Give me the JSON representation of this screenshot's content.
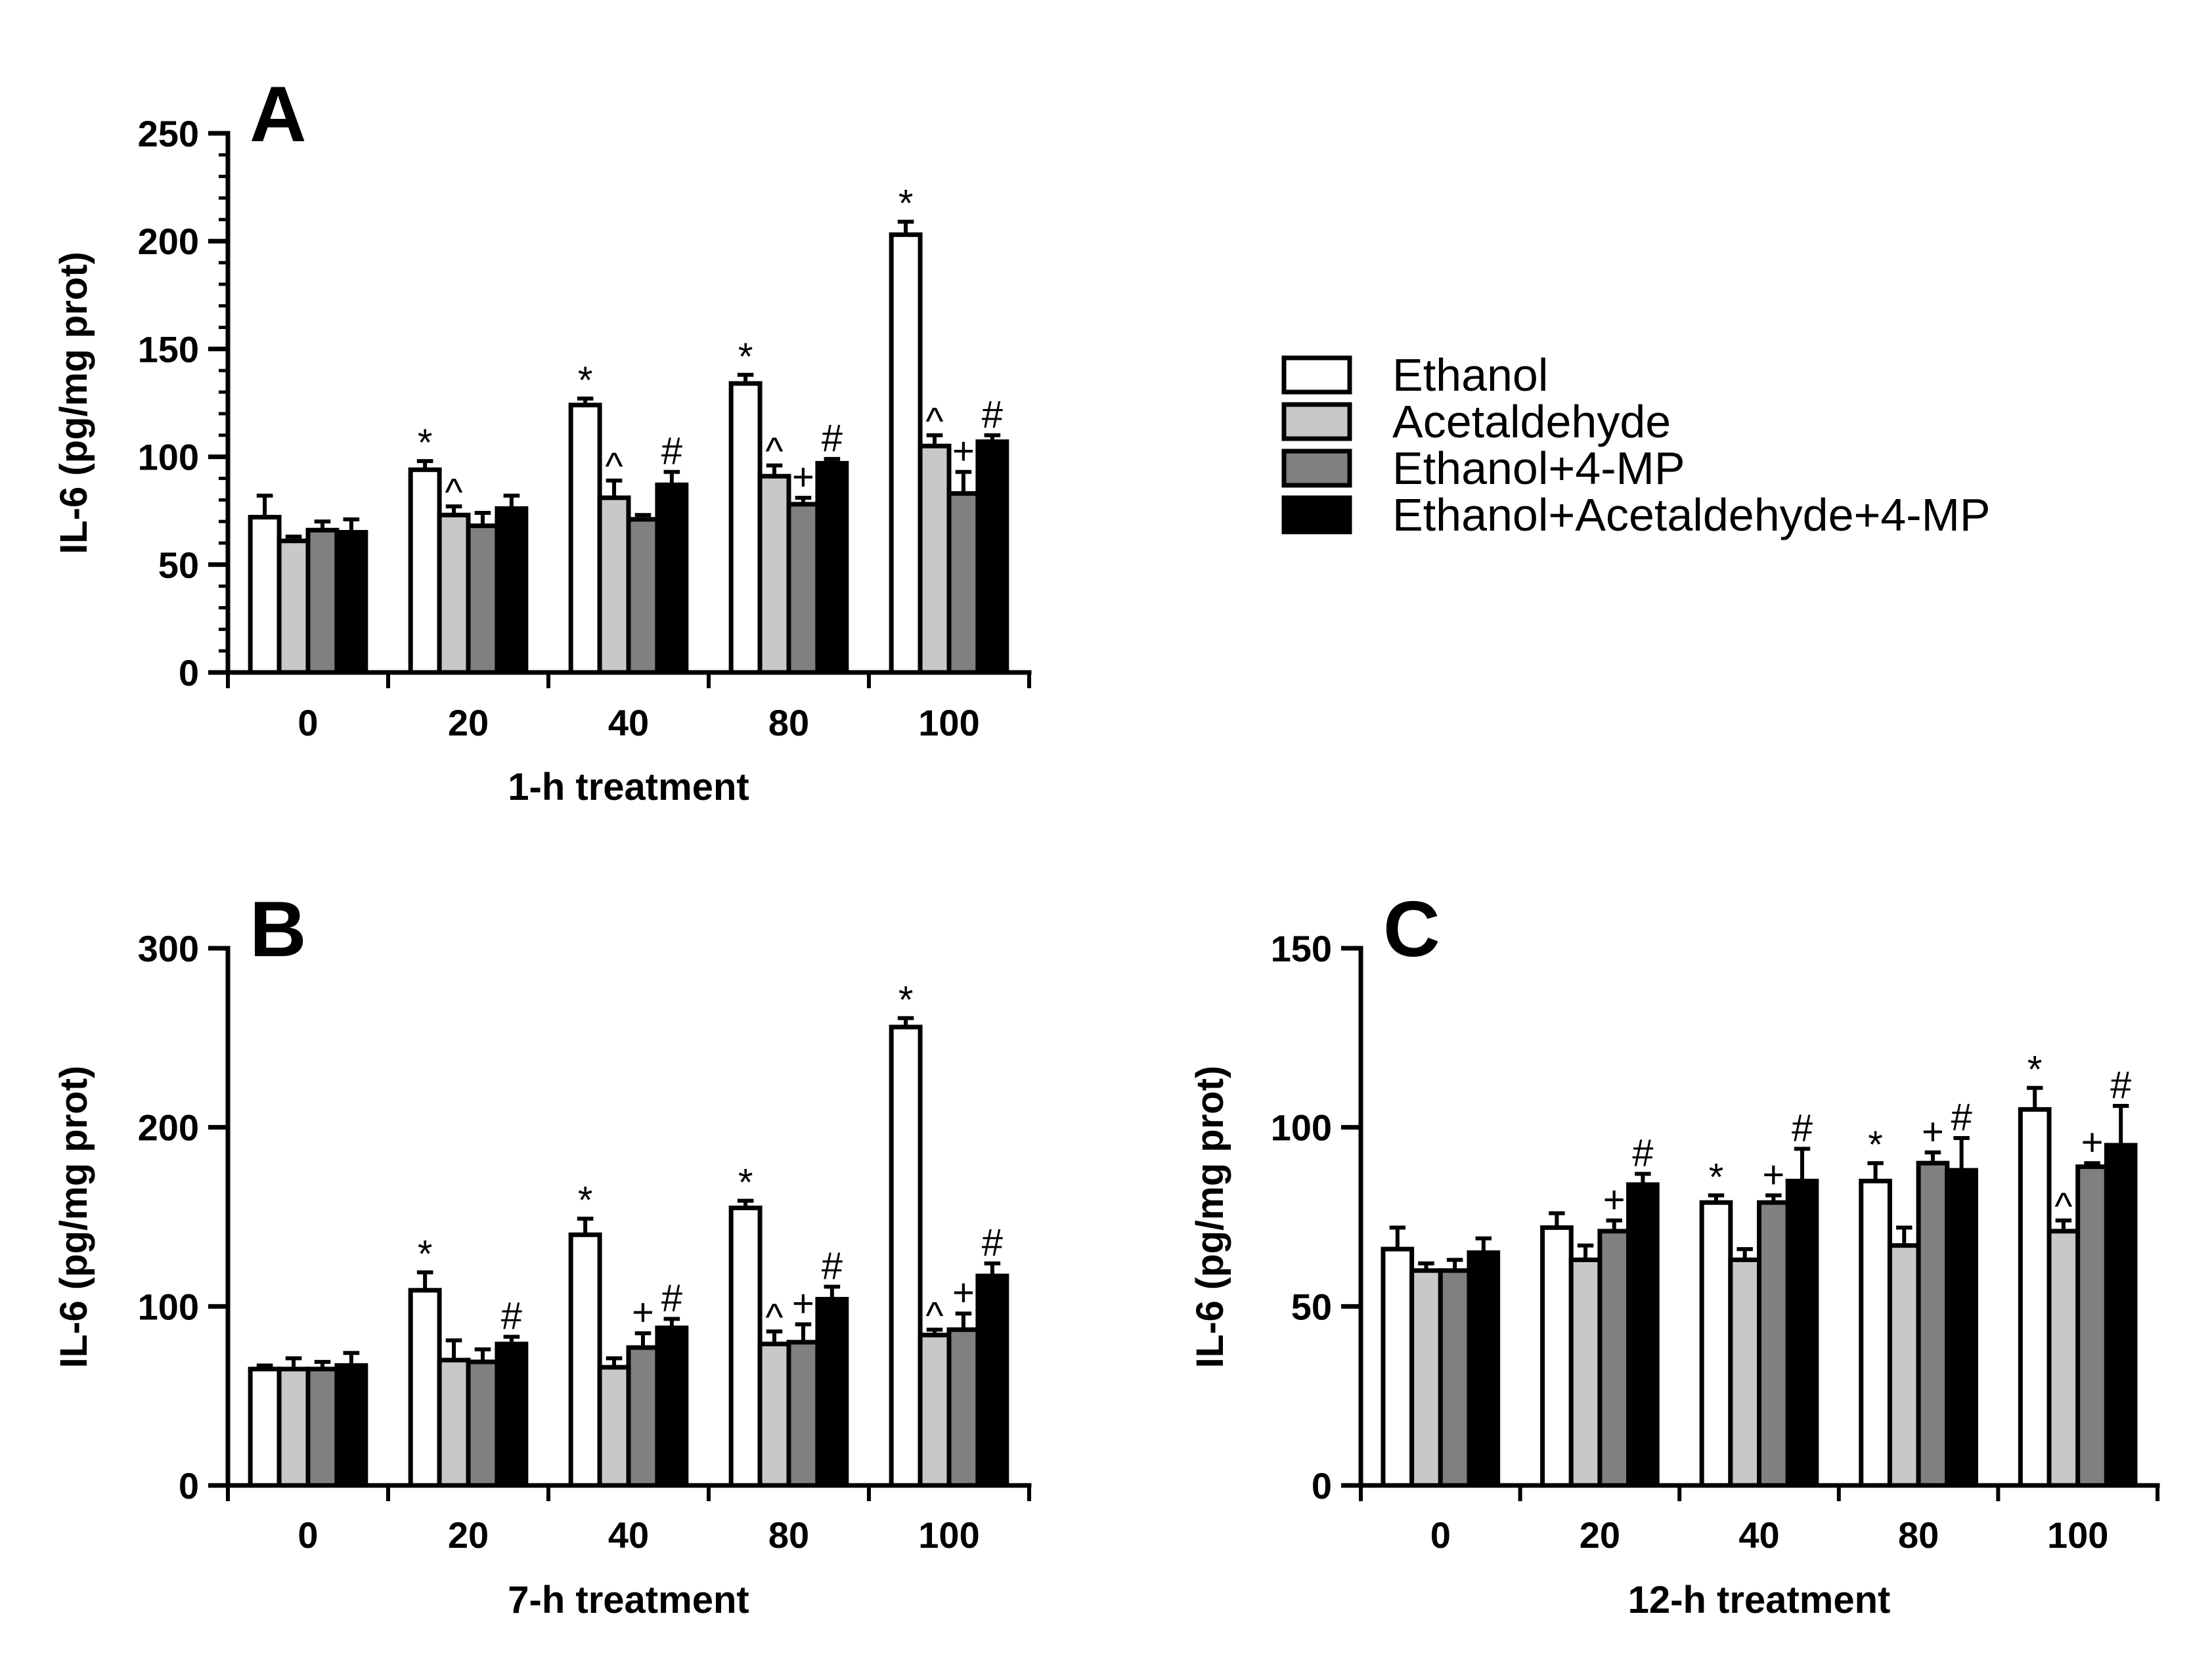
{
  "chart_data": [
    {
      "type": "bar",
      "panel_label": "A",
      "title": "",
      "xlabel": "1-h treatment",
      "ylabel": "IL-6 (pg/mg prot)",
      "ylim": [
        0,
        250
      ],
      "yticks": [
        0,
        50,
        100,
        150,
        200,
        250
      ],
      "y_minor_step": 10,
      "categories": [
        "0",
        "20",
        "40",
        "80",
        "100"
      ],
      "series": [
        {
          "name": "Ethanol",
          "values": [
            72,
            94,
            124,
            134,
            203
          ],
          "errors": [
            10,
            4,
            3,
            4,
            6
          ],
          "annotations": [
            "",
            "*",
            "*",
            "*",
            "*"
          ]
        },
        {
          "name": "Acetaldehyde",
          "values": [
            61,
            73,
            81,
            91,
            105
          ],
          "errors": [
            2,
            4,
            8,
            5,
            5
          ],
          "annotations": [
            "",
            "^",
            "^",
            "^",
            "^"
          ]
        },
        {
          "name": "Ethanol+4-MP",
          "values": [
            66,
            68,
            71,
            78,
            83
          ],
          "errors": [
            4,
            6,
            2,
            3,
            10
          ],
          "annotations": [
            "",
            "",
            "",
            "+",
            "+"
          ]
        },
        {
          "name": "Ethanol+Acetaldehyde+4-MP",
          "values": [
            65,
            76,
            87,
            97,
            107
          ],
          "errors": [
            6,
            6,
            6,
            2,
            3
          ],
          "annotations": [
            "",
            "",
            "#",
            "#",
            "#"
          ]
        }
      ]
    },
    {
      "type": "bar",
      "panel_label": "B",
      "title": "",
      "xlabel": "7-h treatment",
      "ylabel": "IL-6 (pg/mg prot)",
      "ylim": [
        0,
        300
      ],
      "yticks": [
        0,
        100,
        200,
        300
      ],
      "y_minor_step": null,
      "categories": [
        "0",
        "20",
        "40",
        "80",
        "100"
      ],
      "series": [
        {
          "name": "Ethanol",
          "values": [
            65,
            109,
            140,
            155,
            256
          ],
          "errors": [
            2,
            10,
            9,
            4,
            5
          ],
          "annotations": [
            "",
            "*",
            "*",
            "*",
            "*"
          ]
        },
        {
          "name": "Acetaldehyde",
          "values": [
            65,
            70,
            66,
            79,
            84
          ],
          "errors": [
            6,
            11,
            5,
            7,
            3
          ],
          "annotations": [
            "",
            "",
            "",
            "^",
            "^"
          ]
        },
        {
          "name": "Ethanol+4-MP",
          "values": [
            65,
            69,
            77,
            80,
            87
          ],
          "errors": [
            4,
            7,
            8,
            10,
            9
          ],
          "annotations": [
            "",
            "",
            "+",
            "+",
            "+"
          ]
        },
        {
          "name": "Ethanol+Acetaldehyde+4-MP",
          "values": [
            67,
            79,
            88,
            104,
            117
          ],
          "errors": [
            7,
            4,
            5,
            7,
            7
          ],
          "annotations": [
            "",
            "#",
            "#",
            "#",
            "#"
          ]
        }
      ]
    },
    {
      "type": "bar",
      "panel_label": "C",
      "title": "",
      "xlabel": "12-h treatment",
      "ylabel": "IL-6 (pg/mg prot)",
      "ylim": [
        0,
        150
      ],
      "yticks": [
        0,
        50,
        100,
        150
      ],
      "y_minor_step": null,
      "categories": [
        "0",
        "20",
        "40",
        "80",
        "100"
      ],
      "series": [
        {
          "name": "Ethanol",
          "values": [
            66,
            72,
            79,
            85,
            105
          ],
          "errors": [
            6,
            4,
            2,
            5,
            6
          ],
          "annotations": [
            "",
            "",
            "*",
            "*",
            "*"
          ]
        },
        {
          "name": "Acetaldehyde",
          "values": [
            60,
            63,
            63,
            67,
            71
          ],
          "errors": [
            2,
            4,
            3,
            5,
            3
          ],
          "annotations": [
            "",
            "",
            "",
            "",
            "^"
          ]
        },
        {
          "name": "Ethanol+4-MP",
          "values": [
            60,
            71,
            79,
            90,
            89
          ],
          "errors": [
            3,
            3,
            2,
            3,
            1
          ],
          "annotations": [
            "",
            "+",
            "+",
            "+",
            "+"
          ]
        },
        {
          "name": "Ethanol+Acetaldehyde+4-MP",
          "values": [
            65,
            84,
            85,
            88,
            95
          ],
          "errors": [
            4,
            3,
            9,
            9,
            11
          ],
          "annotations": [
            "",
            "#",
            "#",
            "#",
            "#"
          ]
        }
      ]
    }
  ],
  "legend": {
    "placement": "right of panel A",
    "items": [
      {
        "label": "Ethanol",
        "color": "#ffffff"
      },
      {
        "label": "Acetaldehyde",
        "color": "#c8c8c8"
      },
      {
        "label": "Ethanol+4-MP",
        "color": "#808080"
      },
      {
        "label": "Ethanol+Acetaldehyde+4-MP",
        "color": "#000000"
      }
    ]
  },
  "colors": {
    "series": [
      "#ffffff",
      "#c8c8c8",
      "#808080",
      "#000000"
    ],
    "axis": "#000000",
    "background": "#ffffff"
  }
}
